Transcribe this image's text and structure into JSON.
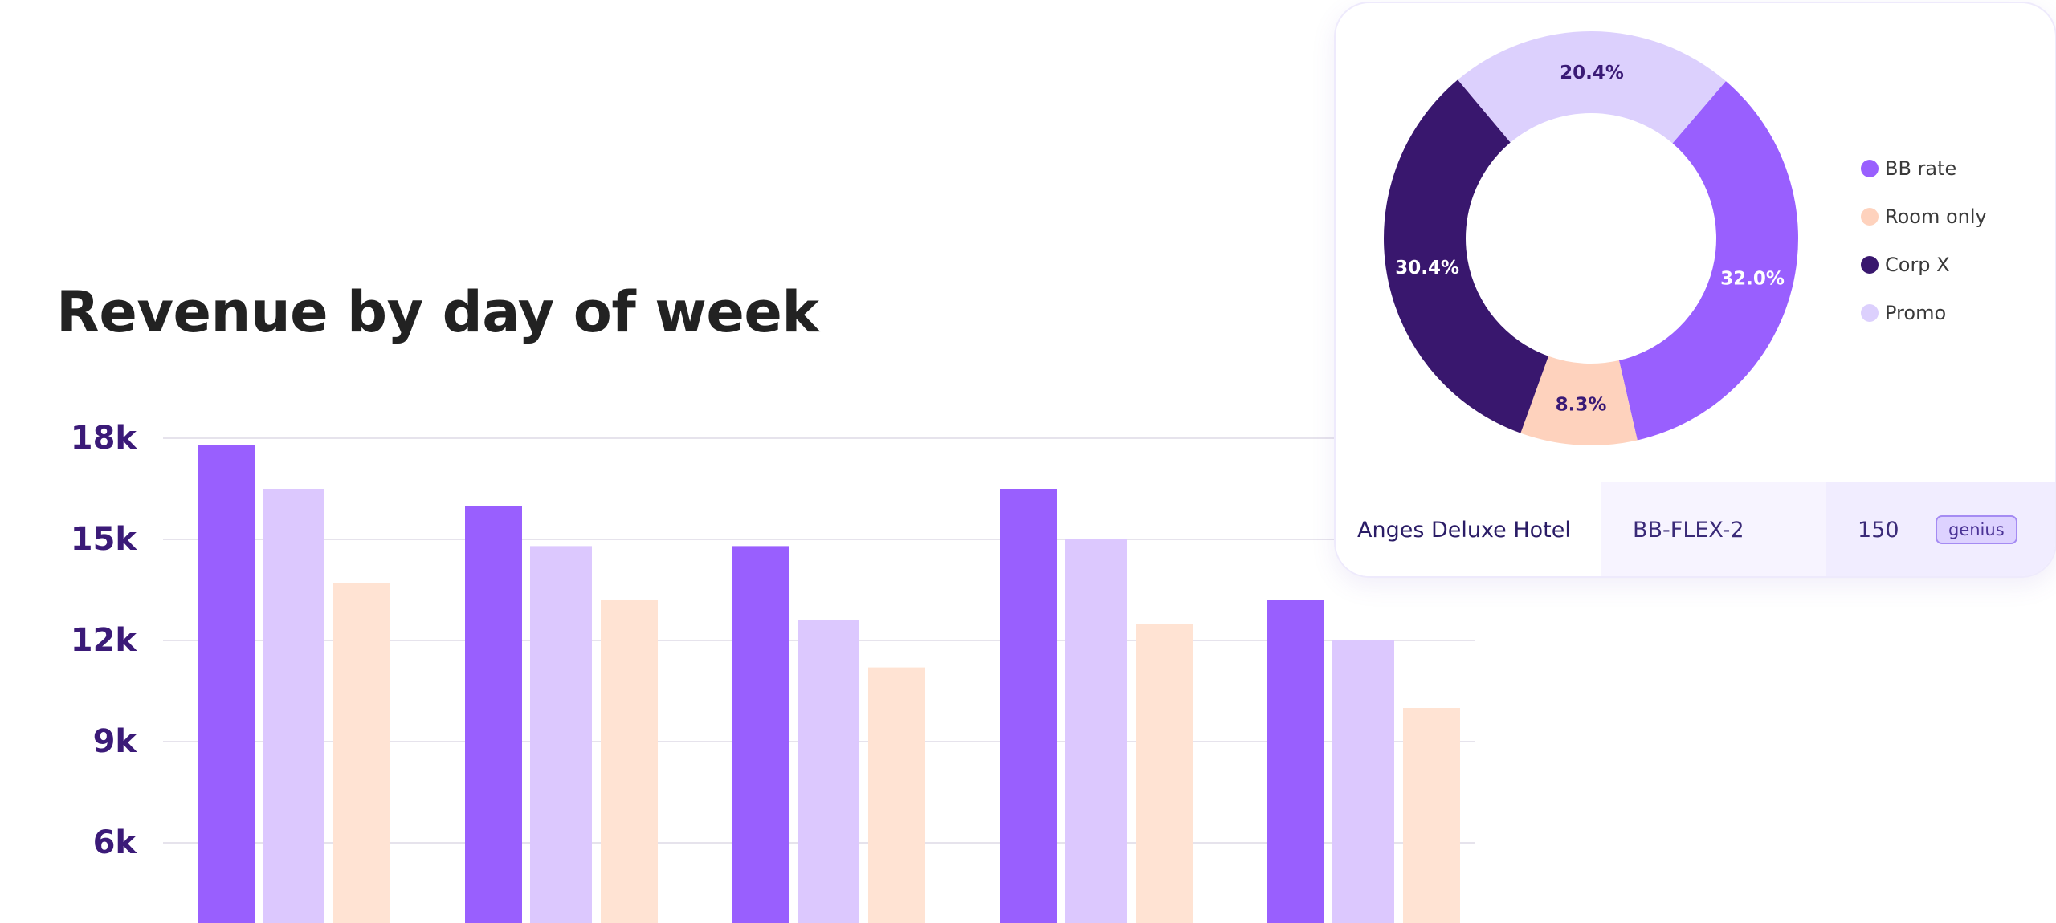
{
  "bar_chart": {
    "title": "Revenue by day of week"
  },
  "chart_data": [
    {
      "type": "bar",
      "title": "Revenue by day of week",
      "xlabel": "",
      "ylabel": "",
      "y_ticks": [
        "18k",
        "15k",
        "12k",
        "9k",
        "6k"
      ],
      "y_tick_values": [
        18000,
        15000,
        12000,
        9000,
        6000
      ],
      "ylim": [
        4000,
        18500
      ],
      "grid": true,
      "categories": [
        "",
        "",
        "",
        "",
        ""
      ],
      "series": [
        {
          "values": [
            17800,
            16000,
            14800,
            16500,
            13200
          ],
          "color": "#995ffe"
        },
        {
          "values": [
            16500,
            14800,
            12600,
            15000,
            12000
          ],
          "color": "#dcc8fe"
        },
        {
          "values": [
            13700,
            13200,
            11200,
            12500,
            10000
          ],
          "color": "#ffe3d3"
        }
      ]
    },
    {
      "type": "pie",
      "donut": true,
      "labels": [
        "BB rate",
        "Room only",
        "Corp X",
        "Promo"
      ],
      "values": [
        32.0,
        8.3,
        30.4,
        20.4
      ],
      "value_labels": [
        "32.0%",
        "8.3%",
        "30.4%",
        "20.4%"
      ],
      "colors": [
        "#995ffe",
        "#fed2bd",
        "#39176e",
        "#dcd0fd"
      ],
      "legend": "right"
    }
  ],
  "legend": {
    "items": [
      {
        "label": "BB rate",
        "color": "#995ffe"
      },
      {
        "label": "Room only",
        "color": "#fed2bd"
      },
      {
        "label": "Corp X",
        "color": "#39176e"
      },
      {
        "label": "Promo",
        "color": "#dcd0fd"
      }
    ]
  },
  "table_row": {
    "hotel": "Anges Deluxe Hotel",
    "code": "BB-FLEX-2",
    "quantity": "150",
    "badge": "genius"
  }
}
